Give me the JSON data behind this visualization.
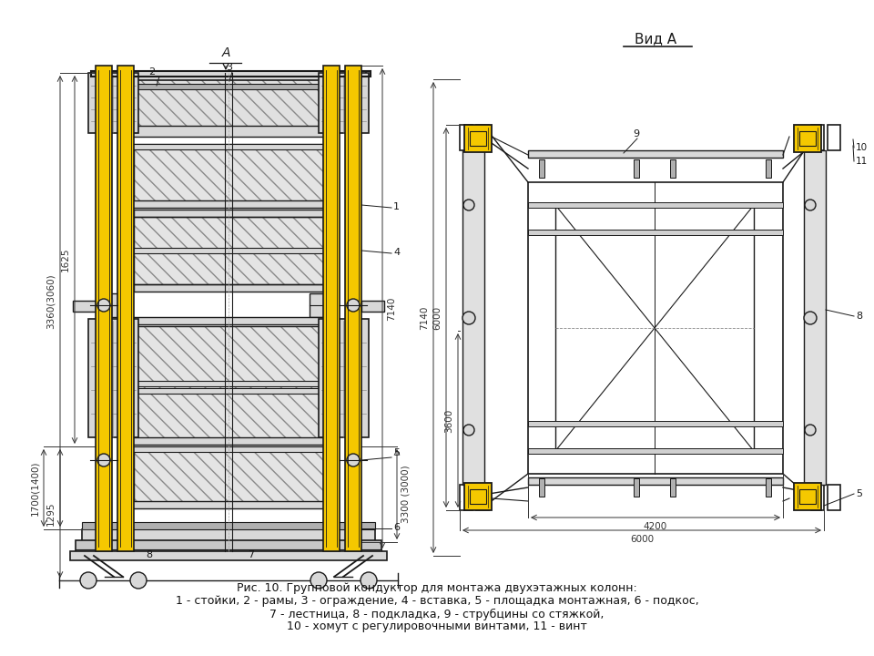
{
  "title_caption": "Рис. 10. Групповой кондуктор для монтажа двухэтажных колонн:",
  "caption_line2": "1 - стойки, 2 - рамы, 3 - ограждение, 4 - вставка, 5 - площадка монтажная, 6 - подкос,",
  "caption_line3": "7 - лестница, 8 - подкладка, 9 - струбцины со стяжкой,",
  "caption_line4": "10 - хомут с регулировочными винтами, 11 - винт",
  "bg_color": "#ffffff",
  "line_color": "#1a1a1a",
  "yellow_color": "#f5c800",
  "dim_color": "#333333",
  "gray_light": "#d8d8d8",
  "gray_mid": "#b0b0b0",
  "vid_A_label": "Вид А"
}
